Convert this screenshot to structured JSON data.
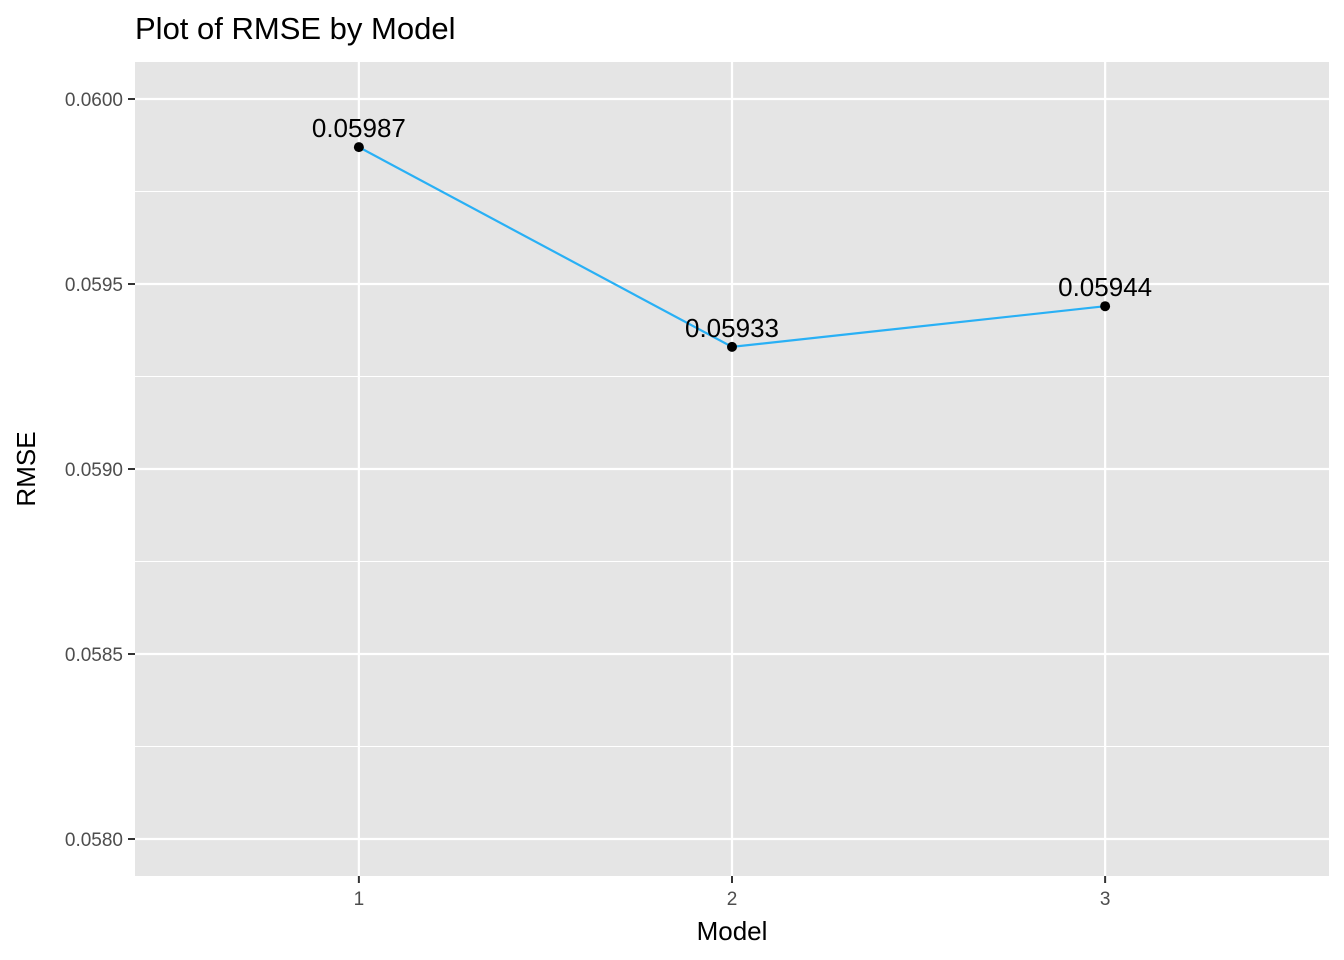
{
  "chart_data": {
    "type": "line",
    "title": "Plot of RMSE by Model",
    "xlabel": "Model",
    "ylabel": "RMSE",
    "x": [
      1,
      2,
      3
    ],
    "y": [
      0.05987,
      0.05933,
      0.05944
    ],
    "labels": [
      "0.05987",
      "0.05933",
      "0.05944"
    ],
    "xticks": [
      "1",
      "2",
      "3"
    ],
    "xlim": [
      0.4,
      3.6
    ],
    "yticks": [
      "0.0580",
      "0.0585",
      "0.0590",
      "0.0595",
      "0.0600"
    ],
    "ylim": [
      0.0579,
      0.0601
    ],
    "grid": true,
    "colors": {
      "line": "#29b0f5",
      "point": "#000000",
      "panel": "#e5e5e5",
      "grid": "#ffffff"
    }
  }
}
